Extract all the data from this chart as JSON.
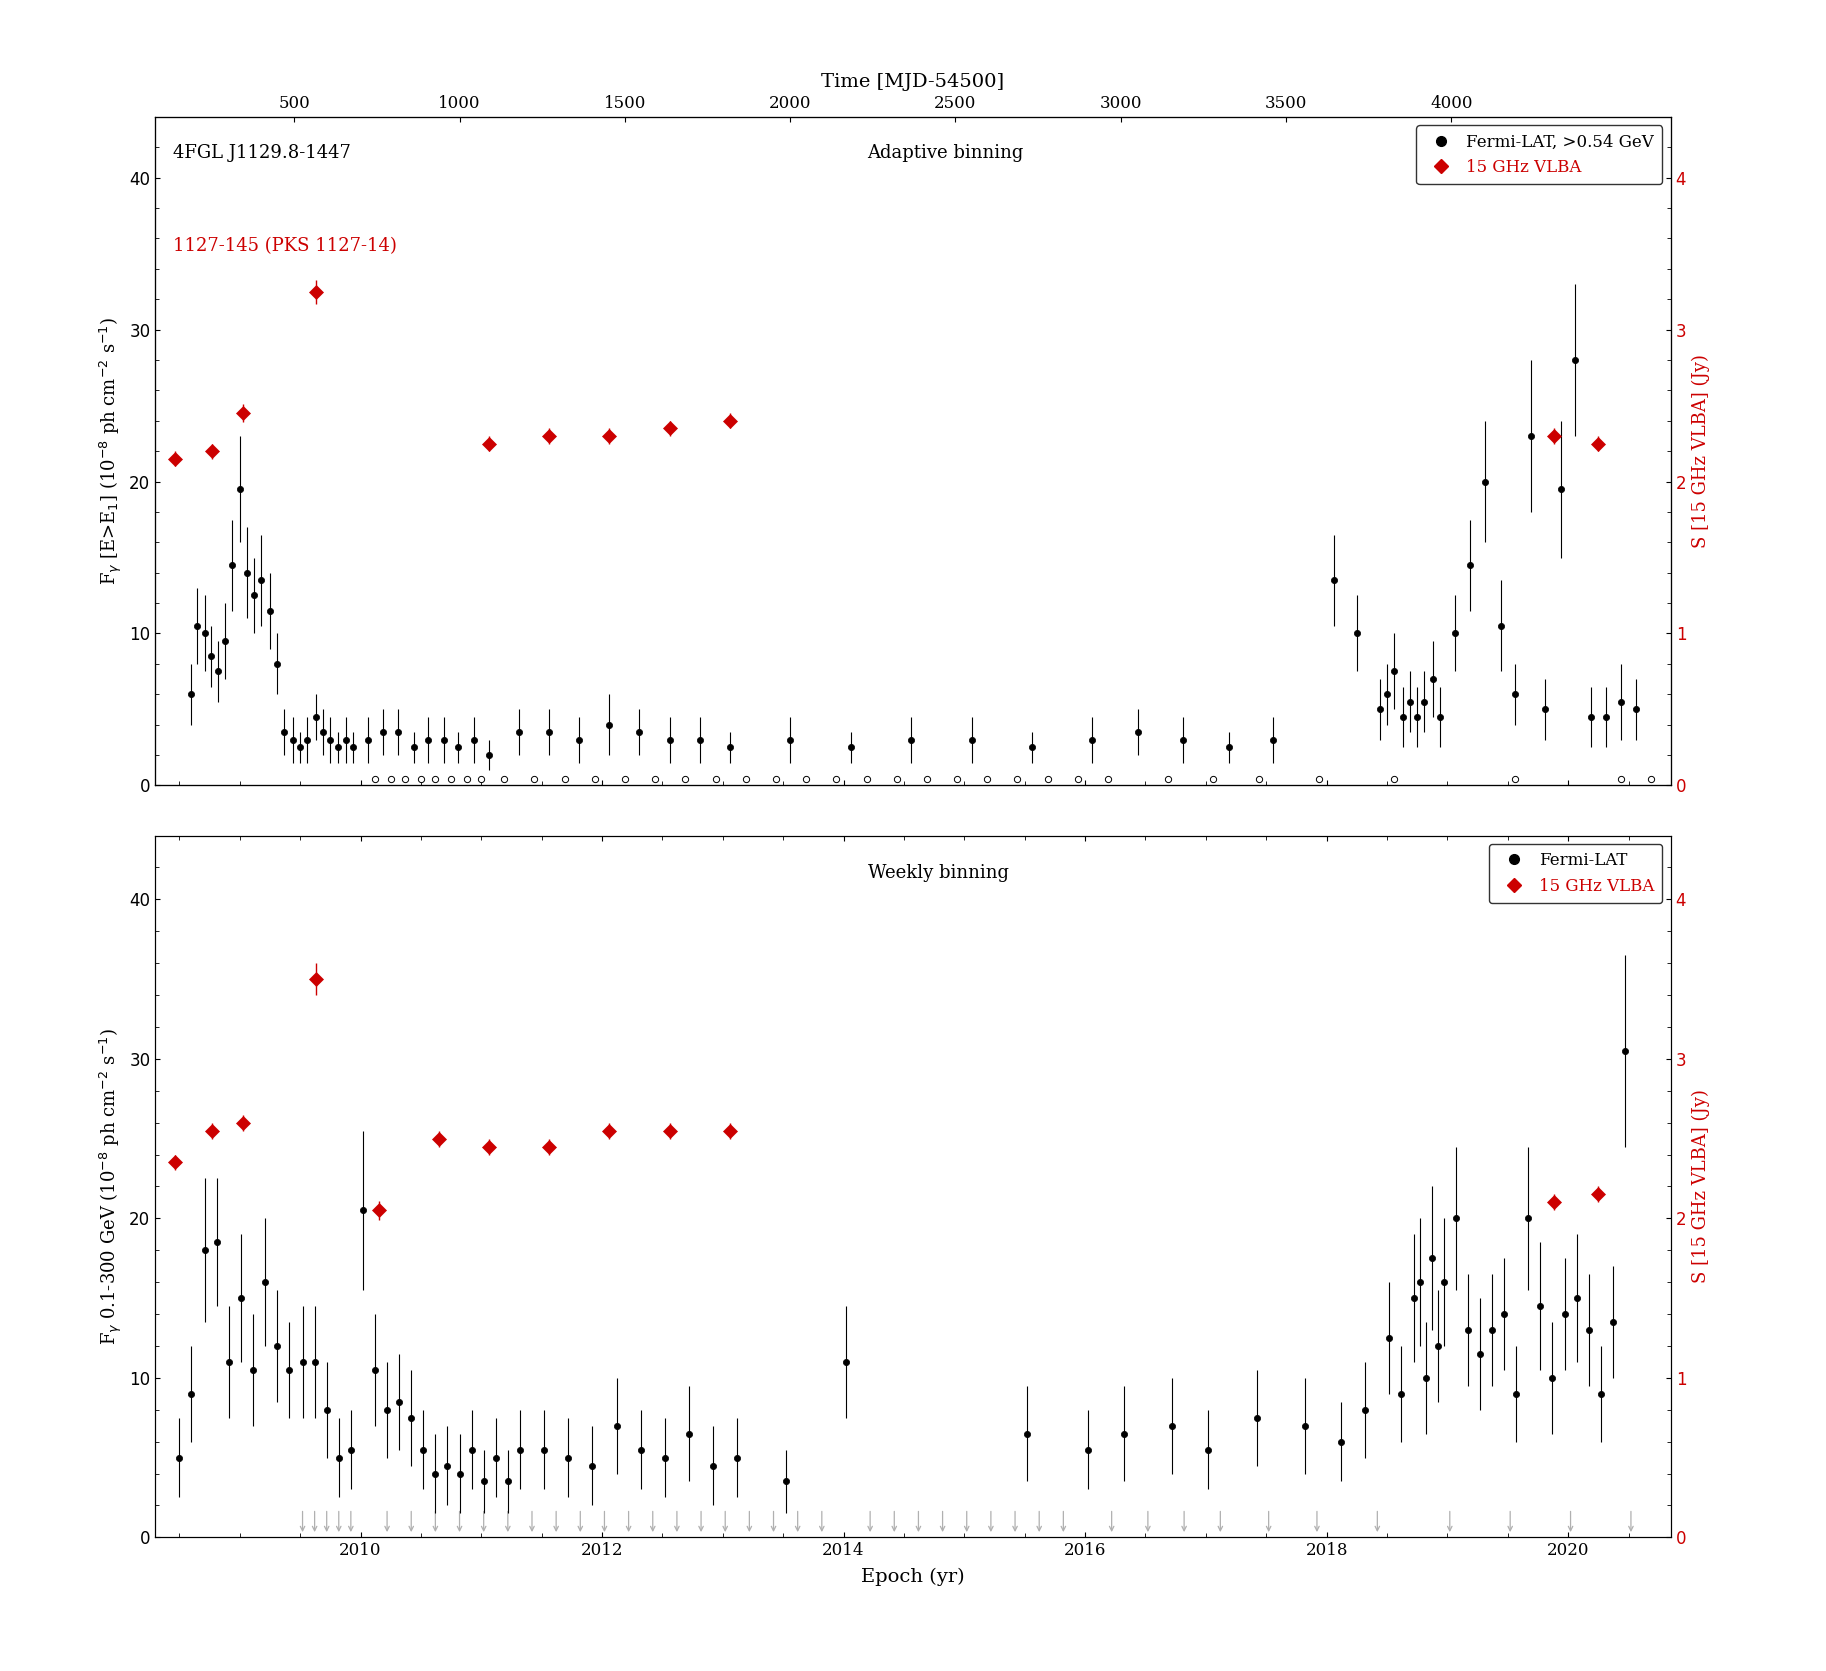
{
  "title_top": "Time [MJD-54500]",
  "xlabel": "Epoch (yr)",
  "ylabel_left_top": "F$_\\gamma$ [E>E$_1$] (10$^{-8}$ ph cm$^{-2}$ s$^{-1}$)",
  "ylabel_left_bottom": "F$_\\gamma$ 0.1-300 GeV (10$^{-8}$ ph cm$^{-2}$ s$^{-1}$)",
  "ylabel_right": "S [15 GHz VLBA] (Jy)",
  "label_top_left1": "4FGL J1129.8-1447",
  "label_top_left2": "1127-145 (PKS 1127-14)",
  "label_adaptive": "Adaptive binning",
  "label_weekly": "Weekly binning",
  "legend_fermi_adaptive": "Fermi-LAT, >0.54 GeV",
  "legend_vlba": "15 GHz VLBA",
  "legend_fermi_weekly": "Fermi-LAT",
  "xmin_yr": 2008.3,
  "xmax_yr": 2020.85,
  "ylim_left": [
    0,
    44
  ],
  "ylim_right": [
    0,
    4.4
  ],
  "yticks_left": [
    0,
    10,
    20,
    30,
    40
  ],
  "yticks_right": [
    0,
    1,
    2,
    3,
    4
  ],
  "xticks_yr": [
    2010,
    2012,
    2014,
    2016,
    2018,
    2020
  ],
  "xticks_mjd": [
    500,
    1000,
    1500,
    2000,
    2500,
    3000,
    3500,
    4000
  ],
  "mjd_epoch_ref": 2008.0821,
  "fermi_adaptive_x": [
    2008.6,
    2008.65,
    2008.71,
    2008.76,
    2008.82,
    2008.88,
    2008.94,
    2009.0,
    2009.06,
    2009.12,
    2009.18,
    2009.25,
    2009.31,
    2009.37,
    2009.44,
    2009.5,
    2009.56,
    2009.63,
    2009.69,
    2009.75,
    2009.81,
    2009.88,
    2009.94,
    2010.06,
    2010.19,
    2010.31,
    2010.44,
    2010.56,
    2010.69,
    2010.81,
    2010.94,
    2011.06,
    2011.31,
    2011.56,
    2011.81,
    2012.06,
    2012.31,
    2012.56,
    2012.81,
    2013.06,
    2013.56,
    2014.06,
    2014.56,
    2015.06,
    2015.56,
    2016.06,
    2016.44,
    2016.81,
    2017.19,
    2017.56,
    2018.06,
    2018.25,
    2018.44,
    2018.5,
    2018.56,
    2018.63,
    2018.69,
    2018.75,
    2018.81,
    2018.88,
    2018.94,
    2019.06,
    2019.19,
    2019.31,
    2019.44,
    2019.56,
    2019.69,
    2019.81,
    2019.94,
    2020.06,
    2020.19,
    2020.31,
    2020.44,
    2020.56
  ],
  "fermi_adaptive_y": [
    6.0,
    10.5,
    10.0,
    8.5,
    7.5,
    9.5,
    14.5,
    19.5,
    14.0,
    12.5,
    13.5,
    11.5,
    8.0,
    3.5,
    3.0,
    2.5,
    3.0,
    4.5,
    3.5,
    3.0,
    2.5,
    3.0,
    2.5,
    3.0,
    3.5,
    3.5,
    2.5,
    3.0,
    3.0,
    2.5,
    3.0,
    2.0,
    3.5,
    3.5,
    3.0,
    4.0,
    3.5,
    3.0,
    3.0,
    2.5,
    3.0,
    2.5,
    3.0,
    3.0,
    2.5,
    3.0,
    3.5,
    3.0,
    2.5,
    3.0,
    13.5,
    10.0,
    5.0,
    6.0,
    7.5,
    4.5,
    5.5,
    4.5,
    5.5,
    7.0,
    4.5,
    10.0,
    14.5,
    20.0,
    10.5,
    6.0,
    23.0,
    5.0,
    19.5,
    28.0,
    4.5,
    4.5,
    5.5,
    5.0
  ],
  "fermi_adaptive_yerr": [
    2.0,
    2.5,
    2.5,
    2.0,
    2.0,
    2.5,
    3.0,
    3.5,
    3.0,
    2.5,
    3.0,
    2.5,
    2.0,
    1.5,
    1.5,
    1.0,
    1.5,
    1.5,
    1.5,
    1.5,
    1.0,
    1.5,
    1.0,
    1.5,
    1.5,
    1.5,
    1.0,
    1.5,
    1.5,
    1.0,
    1.5,
    1.0,
    1.5,
    1.5,
    1.5,
    2.0,
    1.5,
    1.5,
    1.5,
    1.0,
    1.5,
    1.0,
    1.5,
    1.5,
    1.0,
    1.5,
    1.5,
    1.5,
    1.0,
    1.5,
    3.0,
    2.5,
    2.0,
    2.0,
    2.5,
    2.0,
    2.0,
    2.0,
    2.0,
    2.5,
    2.0,
    2.5,
    3.0,
    4.0,
    3.0,
    2.0,
    5.0,
    2.0,
    4.5,
    5.0,
    2.0,
    2.0,
    2.5,
    2.0
  ],
  "fermi_adaptive_upper_x": [
    2010.12,
    2010.25,
    2010.37,
    2010.5,
    2010.62,
    2010.75,
    2010.88,
    2011.0,
    2011.19,
    2011.44,
    2011.69,
    2011.94,
    2012.19,
    2012.44,
    2012.69,
    2012.94,
    2013.19,
    2013.44,
    2013.69,
    2013.94,
    2014.19,
    2014.44,
    2014.69,
    2014.94,
    2015.19,
    2015.44,
    2015.69,
    2015.94,
    2016.19,
    2016.69,
    2017.06,
    2017.44,
    2017.94,
    2018.56,
    2019.56,
    2020.44,
    2020.69
  ],
  "vlba_adaptive_x": [
    2008.46,
    2008.77,
    2009.03,
    2009.63,
    2011.06,
    2011.56,
    2012.06,
    2012.56,
    2013.06,
    2019.88,
    2020.25
  ],
  "vlba_adaptive_y": [
    2.15,
    2.2,
    2.45,
    3.25,
    2.25,
    2.3,
    2.3,
    2.35,
    2.4,
    2.3,
    2.25
  ],
  "vlba_adaptive_yerr": [
    0.05,
    0.05,
    0.06,
    0.08,
    0.05,
    0.05,
    0.05,
    0.05,
    0.05,
    0.05,
    0.05
  ],
  "fermi_weekly_x": [
    2008.5,
    2008.6,
    2008.71,
    2008.81,
    2008.91,
    2009.01,
    2009.11,
    2009.21,
    2009.31,
    2009.41,
    2009.52,
    2009.62,
    2009.72,
    2009.82,
    2009.92,
    2010.02,
    2010.12,
    2010.22,
    2010.32,
    2010.42,
    2010.52,
    2010.62,
    2010.72,
    2010.82,
    2010.92,
    2011.02,
    2011.12,
    2011.22,
    2011.32,
    2011.52,
    2011.72,
    2011.92,
    2012.12,
    2012.32,
    2012.52,
    2012.72,
    2012.92,
    2013.12,
    2013.52,
    2014.02,
    2015.52,
    2016.02,
    2016.32,
    2016.72,
    2017.02,
    2017.42,
    2017.82,
    2018.12,
    2018.32,
    2018.52,
    2018.62,
    2018.72,
    2018.77,
    2018.82,
    2018.87,
    2018.92,
    2018.97,
    2019.07,
    2019.17,
    2019.27,
    2019.37,
    2019.47,
    2019.57,
    2019.67,
    2019.77,
    2019.87,
    2019.97,
    2020.07,
    2020.17,
    2020.27,
    2020.37,
    2020.47
  ],
  "fermi_weekly_y": [
    5.0,
    9.0,
    18.0,
    18.5,
    11.0,
    15.0,
    10.5,
    16.0,
    12.0,
    10.5,
    11.0,
    11.0,
    8.0,
    5.0,
    5.5,
    20.5,
    10.5,
    8.0,
    8.5,
    7.5,
    5.5,
    4.0,
    4.5,
    4.0,
    5.5,
    3.5,
    5.0,
    3.5,
    5.5,
    5.5,
    5.0,
    4.5,
    7.0,
    5.5,
    5.0,
    6.5,
    4.5,
    5.0,
    3.5,
    11.0,
    6.5,
    5.5,
    6.5,
    7.0,
    5.5,
    7.5,
    7.0,
    6.0,
    8.0,
    12.5,
    9.0,
    15.0,
    16.0,
    10.0,
    17.5,
    12.0,
    16.0,
    20.0,
    13.0,
    11.5,
    13.0,
    14.0,
    9.0,
    20.0,
    14.5,
    10.0,
    14.0,
    15.0,
    13.0,
    9.0,
    13.5,
    30.5
  ],
  "fermi_weekly_yerr": [
    2.5,
    3.0,
    4.5,
    4.0,
    3.5,
    4.0,
    3.5,
    4.0,
    3.5,
    3.0,
    3.5,
    3.5,
    3.0,
    2.5,
    2.5,
    5.0,
    3.5,
    3.0,
    3.0,
    3.0,
    2.5,
    2.5,
    2.5,
    2.5,
    2.5,
    2.0,
    2.5,
    2.0,
    2.5,
    2.5,
    2.5,
    2.5,
    3.0,
    2.5,
    2.5,
    3.0,
    2.5,
    2.5,
    2.0,
    3.5,
    3.0,
    2.5,
    3.0,
    3.0,
    2.5,
    3.0,
    3.0,
    2.5,
    3.0,
    3.5,
    3.0,
    4.0,
    4.0,
    3.5,
    4.5,
    3.5,
    4.0,
    4.5,
    3.5,
    3.5,
    3.5,
    3.5,
    3.0,
    4.5,
    4.0,
    3.5,
    3.5,
    4.0,
    3.5,
    3.0,
    3.5,
    6.0
  ],
  "fermi_weekly_upper_x": [
    2009.52,
    2009.62,
    2009.72,
    2009.82,
    2009.92,
    2010.22,
    2010.42,
    2010.62,
    2010.82,
    2011.02,
    2011.22,
    2011.42,
    2011.62,
    2011.82,
    2012.02,
    2012.22,
    2012.42,
    2012.62,
    2012.82,
    2013.02,
    2013.22,
    2013.42,
    2013.62,
    2013.82,
    2014.22,
    2014.42,
    2014.62,
    2014.82,
    2015.02,
    2015.22,
    2015.42,
    2015.62,
    2015.82,
    2016.22,
    2016.52,
    2016.82,
    2017.12,
    2017.52,
    2017.92,
    2018.42,
    2019.02,
    2019.52,
    2020.02,
    2020.52
  ],
  "vlba_weekly_x": [
    2008.46,
    2008.77,
    2009.03,
    2009.63,
    2010.15,
    2010.65,
    2011.06,
    2011.56,
    2012.06,
    2012.56,
    2013.06,
    2019.88,
    2020.25
  ],
  "vlba_weekly_y": [
    2.35,
    2.55,
    2.6,
    3.5,
    2.05,
    2.5,
    2.45,
    2.45,
    2.55,
    2.55,
    2.55,
    2.1,
    2.15
  ],
  "vlba_weekly_yerr": [
    0.05,
    0.05,
    0.05,
    0.1,
    0.06,
    0.05,
    0.05,
    0.05,
    0.05,
    0.05,
    0.05,
    0.05,
    0.05
  ],
  "fermi_color": "#000000",
  "vlba_color": "#cc0000",
  "upper_color": "#b0b0b0",
  "bg_color": "#ffffff"
}
